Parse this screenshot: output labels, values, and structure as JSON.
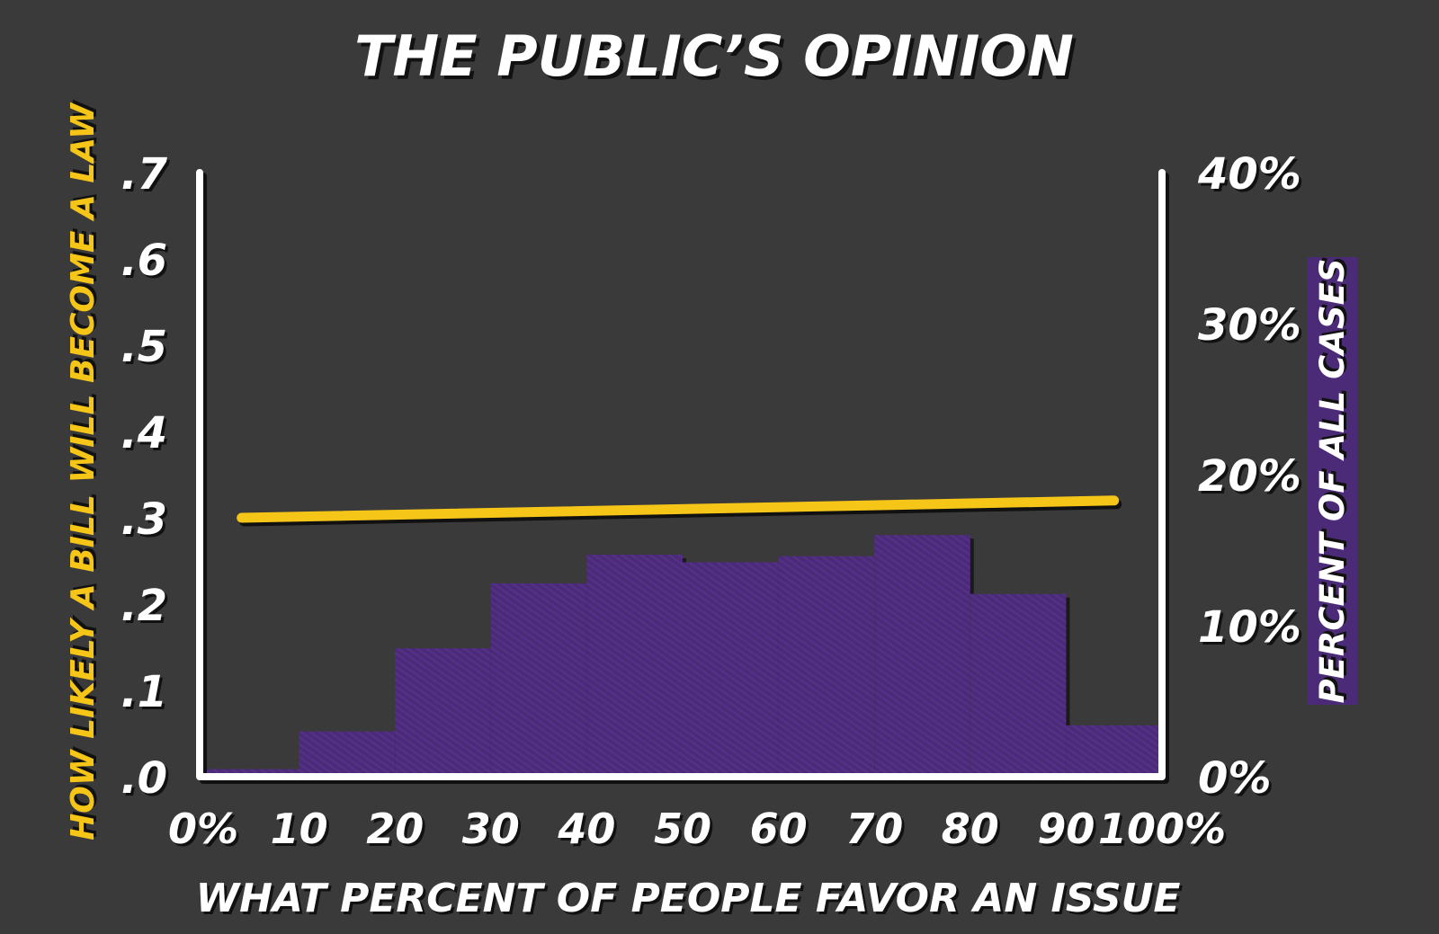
{
  "chart_data": {
    "type": "bar",
    "title": "THE PUBLIC’S OPINION",
    "xlabel": "WHAT PERCENT OF PEOPLE FAVOR AN ISSUE",
    "ylabel_left": "HOW LIKELY A BILL WILL BECOME A LAW",
    "ylabel_right": "PERCENT OF ALL CASES",
    "x_ticks": [
      "0%",
      "10",
      "20",
      "30",
      "40",
      "50",
      "60",
      "70",
      "80",
      "90",
      "100%"
    ],
    "y_left_ticks": [
      ".0",
      ".1",
      ".2",
      ".3",
      ".4",
      ".5",
      ".6",
      ".7"
    ],
    "y_right_ticks": [
      "0%",
      "10%",
      "20%",
      "30%",
      "40%"
    ],
    "xlim": [
      0,
      100
    ],
    "ylim_left": [
      0,
      0.7
    ],
    "ylim_right": [
      0,
      40
    ],
    "histogram": {
      "name": "PERCENT OF ALL CASES",
      "axis": "right",
      "bins": [
        {
          "from": 0,
          "to": 10,
          "value": 0.5
        },
        {
          "from": 10,
          "to": 20,
          "value": 3
        },
        {
          "from": 20,
          "to": 30,
          "value": 8.5
        },
        {
          "from": 30,
          "to": 40,
          "value": 12.8
        },
        {
          "from": 40,
          "to": 50,
          "value": 14.7
        },
        {
          "from": 50,
          "to": 60,
          "value": 14.2
        },
        {
          "from": 60,
          "to": 70,
          "value": 14.6
        },
        {
          "from": 70,
          "to": 80,
          "value": 16
        },
        {
          "from": 80,
          "to": 90,
          "value": 12.1
        },
        {
          "from": 90,
          "to": 100,
          "value": 3.4
        }
      ]
    },
    "line": {
      "name": "HOW LIKELY A BILL WILL BECOME A LAW",
      "axis": "left",
      "x": [
        4,
        95
      ],
      "y": [
        0.3,
        0.32
      ]
    },
    "grid": false,
    "legend": "none"
  },
  "colors": {
    "background": "#3a3a3a",
    "axis": "#ffffff",
    "line": "#f5c518",
    "bars": "#4b2a78",
    "title_text": "#ffffff",
    "left_label": "#f5c518",
    "right_label_bg": "#4b2a78",
    "right_label_text": "#ffffff",
    "shadow": "#111111"
  }
}
